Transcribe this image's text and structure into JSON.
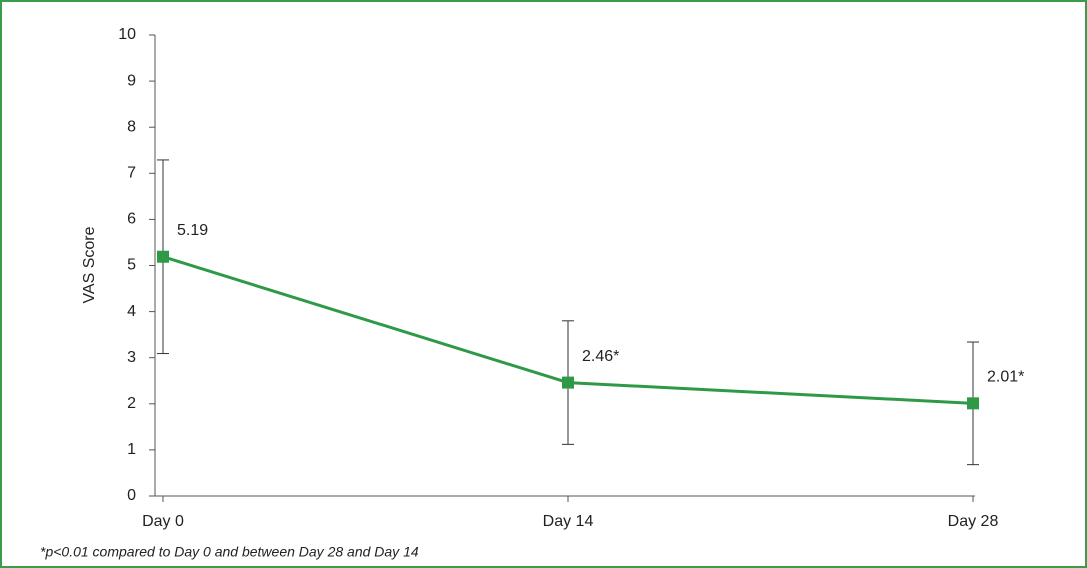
{
  "chart_data": {
    "type": "line",
    "y_label": "VAS Score",
    "categories": [
      "Day 0",
      "Day 14",
      "Day 28"
    ],
    "values": [
      5.19,
      2.46,
      2.01
    ],
    "errors": [
      2.1,
      1.34,
      1.33
    ],
    "value_labels": [
      "5.19",
      "2.46*",
      "2.01*"
    ],
    "color": "#2e9a48",
    "ylim": [
      0,
      10
    ],
    "yticks": [
      0,
      1,
      2,
      3,
      4,
      5,
      6,
      7,
      8,
      9,
      10
    ],
    "grid": false,
    "footnote": "*p<0.01 compared to Day 0 and between Day 28 and Day 14"
  }
}
